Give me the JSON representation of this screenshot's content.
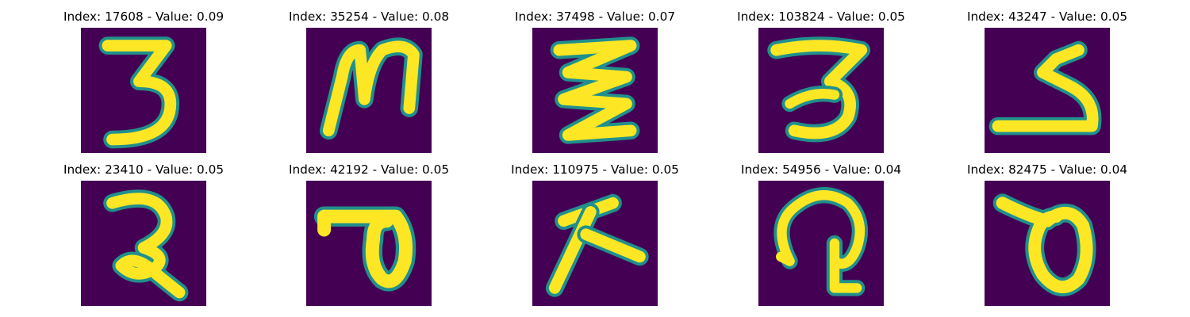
{
  "grid": {
    "title_format": "Index: {index} - Value: {value}",
    "colors": {
      "background": "#440154",
      "stroke_edge": "#21908C",
      "stroke_core": "#FDE725"
    },
    "items": [
      {
        "title": "Index: 17608 - Value: 0.09",
        "index": 17608,
        "value": 0.09
      },
      {
        "title": "Index: 35254 - Value: 0.08",
        "index": 35254,
        "value": 0.08
      },
      {
        "title": "Index: 37498 - Value: 0.07",
        "index": 37498,
        "value": 0.07
      },
      {
        "title": "Index: 103824 - Value: 0.05",
        "index": 103824,
        "value": 0.05
      },
      {
        "title": "Index: 43247 - Value: 0.05",
        "index": 43247,
        "value": 0.05
      },
      {
        "title": "Index: 23410 - Value: 0.05",
        "index": 23410,
        "value": 0.05
      },
      {
        "title": "Index: 42192 - Value: 0.05",
        "index": 42192,
        "value": 0.05
      },
      {
        "title": "Index: 110975 - Value: 0.05",
        "index": 110975,
        "value": 0.05
      },
      {
        "title": "Index: 54956 - Value: 0.04",
        "index": 54956,
        "value": 0.04
      },
      {
        "title": "Index: 82475 - Value: 0.04",
        "index": 82475,
        "value": 0.04
      }
    ]
  }
}
